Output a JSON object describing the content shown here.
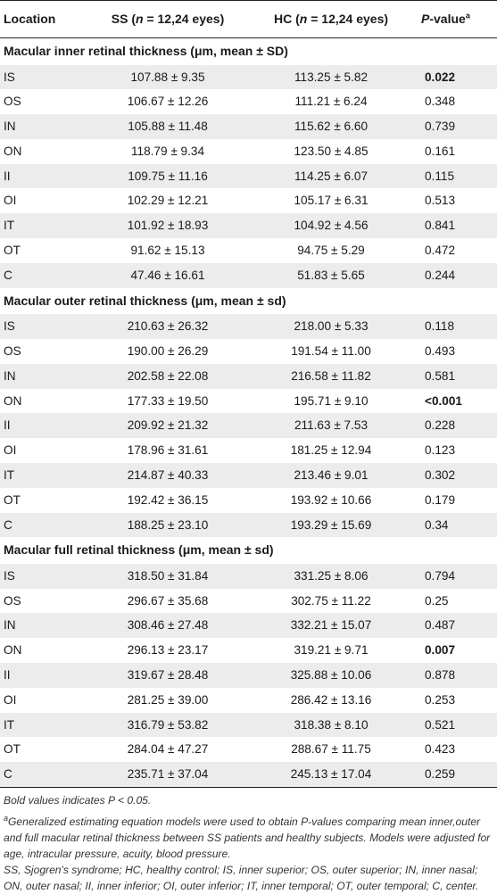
{
  "header": {
    "location": "Location",
    "ss_prefix": "SS (",
    "n_italic": "n",
    "ss_suffix": " = 12,24 eyes)",
    "hc_prefix": "HC (",
    "hc_suffix": " = 12,24 eyes)",
    "p_italic": "P",
    "p_suffix": "-value",
    "p_sup": "a"
  },
  "sections": [
    {
      "title": "Macular inner retinal thickness (μm, mean ± SD)",
      "rows": [
        {
          "loc": "IS",
          "ss": "107.88 ± 9.35",
          "hc": "113.25 ± 5.82",
          "p": "0.022",
          "bold": true
        },
        {
          "loc": "OS",
          "ss": "106.67 ± 12.26",
          "hc": "111.21 ± 6.24",
          "p": "0.348",
          "bold": false
        },
        {
          "loc": "IN",
          "ss": "105.88 ± 11.48",
          "hc": "115.62 ± 6.60",
          "p": "0.739",
          "bold": false
        },
        {
          "loc": "ON",
          "ss": "118.79 ± 9.34",
          "hc": "123.50 ± 4.85",
          "p": "0.161",
          "bold": false
        },
        {
          "loc": "II",
          "ss": "109.75 ± 11.16",
          "hc": "114.25 ± 6.07",
          "p": "0.115",
          "bold": false
        },
        {
          "loc": "OI",
          "ss": "102.29 ± 12.21",
          "hc": "105.17 ± 6.31",
          "p": "0.513",
          "bold": false
        },
        {
          "loc": "IT",
          "ss": "101.92 ± 18.93",
          "hc": "104.92 ± 4.56",
          "p": "0.841",
          "bold": false
        },
        {
          "loc": "OT",
          "ss": "91.62 ± 15.13",
          "hc": "94.75 ± 5.29",
          "p": "0.472",
          "bold": false
        },
        {
          "loc": "C",
          "ss": "47.46 ± 16.61",
          "hc": "51.83 ± 5.65",
          "p": "0.244",
          "bold": false
        }
      ]
    },
    {
      "title": "Macular outer retinal thickness (μm, mean ± sd)",
      "rows": [
        {
          "loc": "IS",
          "ss": "210.63 ± 26.32",
          "hc": "218.00 ± 5.33",
          "p": "0.118",
          "bold": false
        },
        {
          "loc": "OS",
          "ss": "190.00 ± 26.29",
          "hc": "191.54 ± 11.00",
          "p": "0.493",
          "bold": false
        },
        {
          "loc": "IN",
          "ss": "202.58 ± 22.08",
          "hc": "216.58 ± 11.82",
          "p": "0.581",
          "bold": false
        },
        {
          "loc": "ON",
          "ss": "177.33 ± 19.50",
          "hc": "195.71 ± 9.10",
          "p": "<0.001",
          "bold": true
        },
        {
          "loc": "II",
          "ss": "209.92 ± 21.32",
          "hc": "211.63 ± 7.53",
          "p": "0.228",
          "bold": false
        },
        {
          "loc": "OI",
          "ss": "178.96 ± 31.61",
          "hc": "181.25 ± 12.94",
          "p": "0.123",
          "bold": false
        },
        {
          "loc": "IT",
          "ss": "214.87 ± 40.33",
          "hc": "213.46 ± 9.01",
          "p": "0.302",
          "bold": false
        },
        {
          "loc": "OT",
          "ss": "192.42 ± 36.15",
          "hc": "193.92 ± 10.66",
          "p": "0.179",
          "bold": false
        },
        {
          "loc": "C",
          "ss": "188.25 ± 23.10",
          "hc": "193.29 ± 15.69",
          "p": "0.34",
          "bold": false
        }
      ]
    },
    {
      "title": "Macular full retinal thickness (μm, mean ± sd)",
      "rows": [
        {
          "loc": "IS",
          "ss": "318.50 ± 31.84",
          "hc": "331.25 ± 8.06",
          "p": "0.794",
          "bold": false
        },
        {
          "loc": "OS",
          "ss": "296.67 ± 35.68",
          "hc": "302.75 ± 11.22",
          "p": "0.25",
          "bold": false
        },
        {
          "loc": "IN",
          "ss": "308.46 ± 27.48",
          "hc": "332.21 ± 15.07",
          "p": "0.487",
          "bold": false
        },
        {
          "loc": "ON",
          "ss": "296.13 ± 23.17",
          "hc": "319.21 ± 9.71",
          "p": "0.007",
          "bold": true
        },
        {
          "loc": "II",
          "ss": "319.67 ± 28.48",
          "hc": "325.88 ± 10.06",
          "p": "0.878",
          "bold": false
        },
        {
          "loc": "OI",
          "ss": "281.25 ± 39.00",
          "hc": "286.42 ± 13.16",
          "p": "0.253",
          "bold": false
        },
        {
          "loc": "IT",
          "ss": "316.79 ± 53.82",
          "hc": "318.38 ± 8.10",
          "p": "0.521",
          "bold": false
        },
        {
          "loc": "OT",
          "ss": "284.04 ± 47.27",
          "hc": "288.67 ± 11.75",
          "p": "0.423",
          "bold": false
        },
        {
          "loc": "C",
          "ss": "235.71 ± 37.04",
          "hc": "245.13 ± 17.04",
          "p": "0.259",
          "bold": false
        }
      ]
    }
  ],
  "footnotes": {
    "bold_note": "Bold values indicates P < 0.05.",
    "a_sup": "a",
    "a_note": "Generalized estimating equation models were used to obtain P-values comparing mean inner,outer and full macular retinal thickness between SS patients and healthy subjects. Models were adjusted for age, intracular pressure, acuity, blood pressure.",
    "abbrev": "SS, Sjogren's syndrome; HC, healthy control; IS, inner superior; OS, outer superior; IN, inner nasal; ON, outer nasal; II, inner inferior; OI, outer inferior; IT, inner temporal; OT, outer temporal; C, center."
  }
}
